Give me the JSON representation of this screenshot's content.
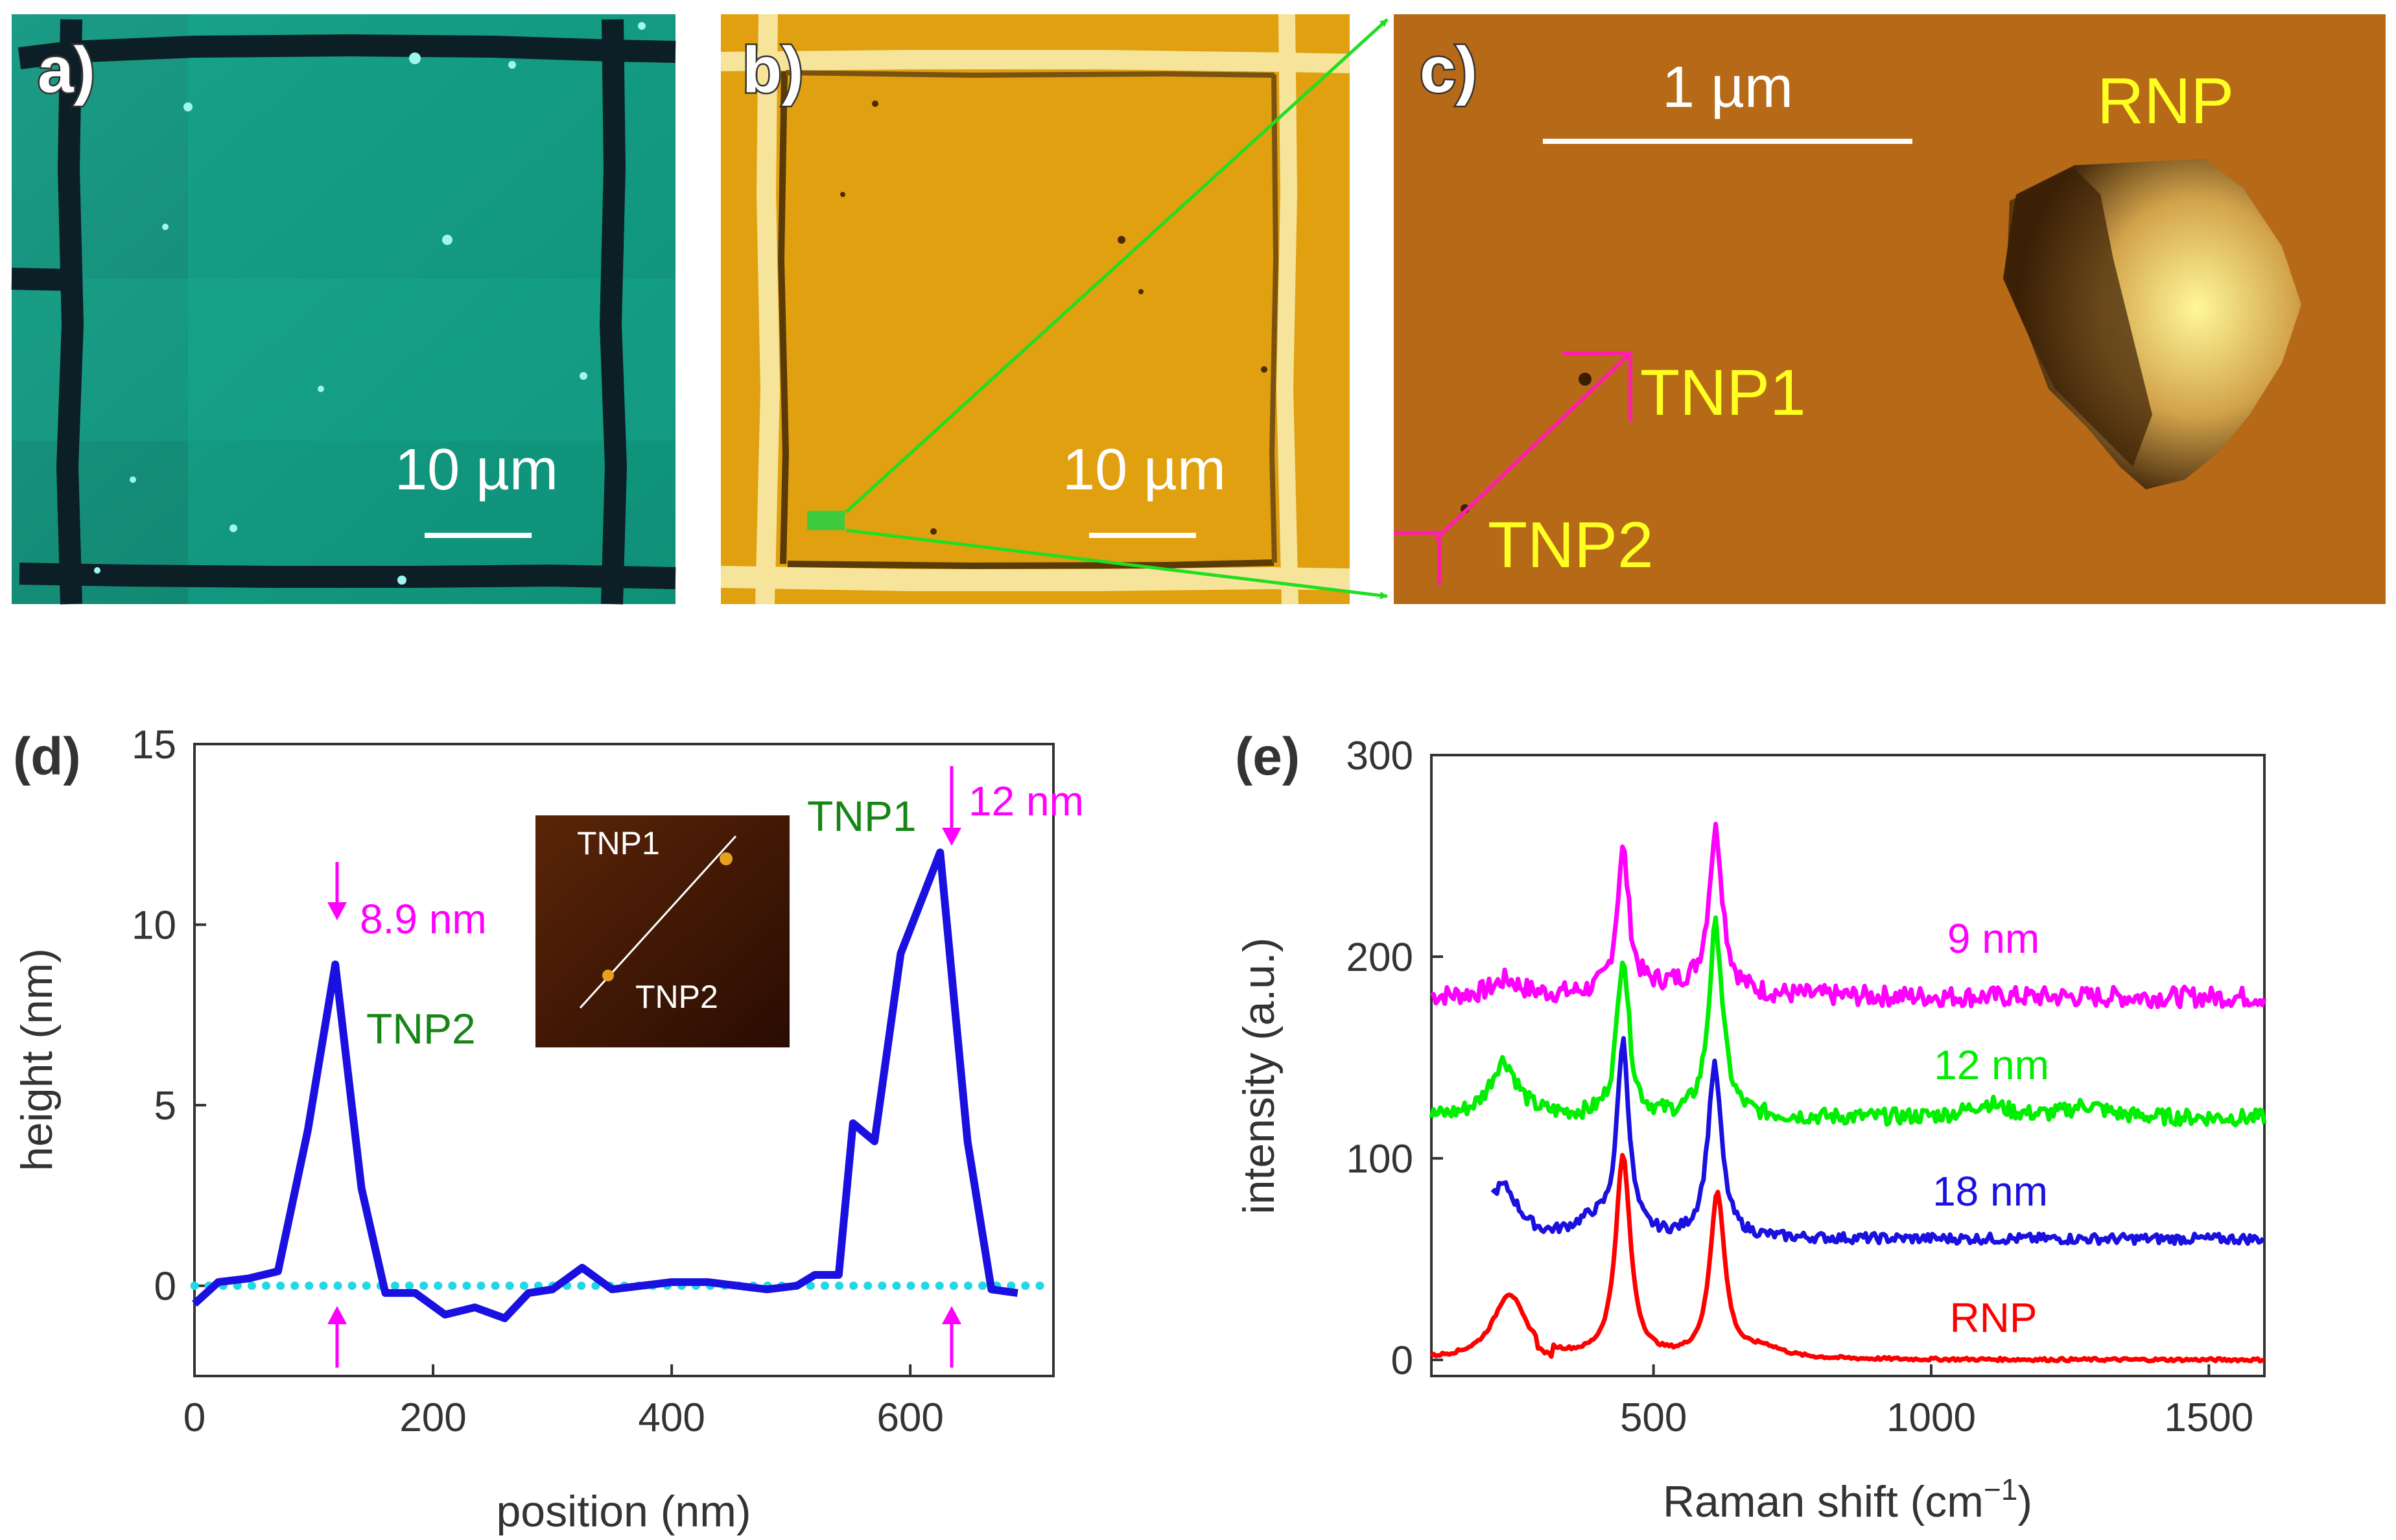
{
  "panel_a": {
    "label": "a)",
    "scalebar": "10 µm"
  },
  "panel_b": {
    "label": "b)",
    "scalebar": "10 µm"
  },
  "panel_c": {
    "label": "c)",
    "scalebar": "1 µm",
    "labels": {
      "rnp": "RNP",
      "tnp1": "TNP1",
      "tnp2": "TNP2"
    }
  },
  "chart_data": [
    {
      "type": "line",
      "panel_label": "(d)",
      "xlabel": "position (nm)",
      "ylabel": "height (nm)",
      "xlim": [
        0,
        720
      ],
      "ylim": [
        -2.5,
        15
      ],
      "xticks": [
        0,
        200,
        400,
        600
      ],
      "yticks": [
        0,
        5,
        10,
        15
      ],
      "series": [
        {
          "name": "height profile",
          "color": "#1a10e0",
          "x": [
            0,
            20,
            45,
            70,
            95,
            118,
            140,
            160,
            185,
            210,
            235,
            260,
            280,
            300,
            325,
            350,
            375,
            400,
            430,
            455,
            480,
            505,
            520,
            540,
            552,
            570,
            592,
            625,
            648,
            668,
            690
          ],
          "y": [
            -0.5,
            0.1,
            0.2,
            0.4,
            4.3,
            8.9,
            2.7,
            -0.2,
            -0.2,
            -0.8,
            -0.6,
            -0.9,
            -0.2,
            -0.1,
            0.5,
            -0.1,
            0.0,
            0.1,
            0.1,
            0.0,
            -0.1,
            0.0,
            0.3,
            0.3,
            4.5,
            4.0,
            9.2,
            12.0,
            4.0,
            -0.1,
            -0.2
          ]
        },
        {
          "name": "baseline",
          "color": "#22d8e6",
          "style": "dotted",
          "x": [
            0,
            720
          ],
          "y": [
            0,
            0
          ]
        }
      ],
      "annotations": [
        {
          "text": "8.9 nm",
          "color": "#ff00ff",
          "x": 118,
          "y": 8.9
        },
        {
          "text": "12 nm",
          "color": "#ff00ff",
          "x": 625,
          "y": 12.0
        },
        {
          "text": "TNP2",
          "color": "#168516",
          "x": 118,
          "y": 8.9
        },
        {
          "text": "TNP1",
          "color": "#168516",
          "x": 625,
          "y": 12.0
        }
      ],
      "inset": {
        "labels": [
          "TNP1",
          "TNP2"
        ]
      }
    },
    {
      "type": "line",
      "panel_label": "(e)",
      "xlabel": "Raman shift (cm",
      "xlabel_sup": "−1",
      "xlabel_end": ")",
      "ylabel": "intensity (a.u.)",
      "xlim": [
        100,
        1600
      ],
      "ylim": [
        -8,
        300
      ],
      "xticks": [
        500,
        1000,
        1500
      ],
      "yticks": [
        0,
        100,
        200,
        300
      ],
      "series": [
        {
          "name": "9 nm",
          "color": "#ff00ff",
          "baseline": 180
        },
        {
          "name": "12 nm",
          "color": "#00ee00",
          "baseline": 120
        },
        {
          "name": "18 nm",
          "color": "#1a10e0",
          "baseline": 60
        },
        {
          "name": "RNP",
          "color": "#ff0000",
          "baseline": 0
        }
      ]
    }
  ]
}
